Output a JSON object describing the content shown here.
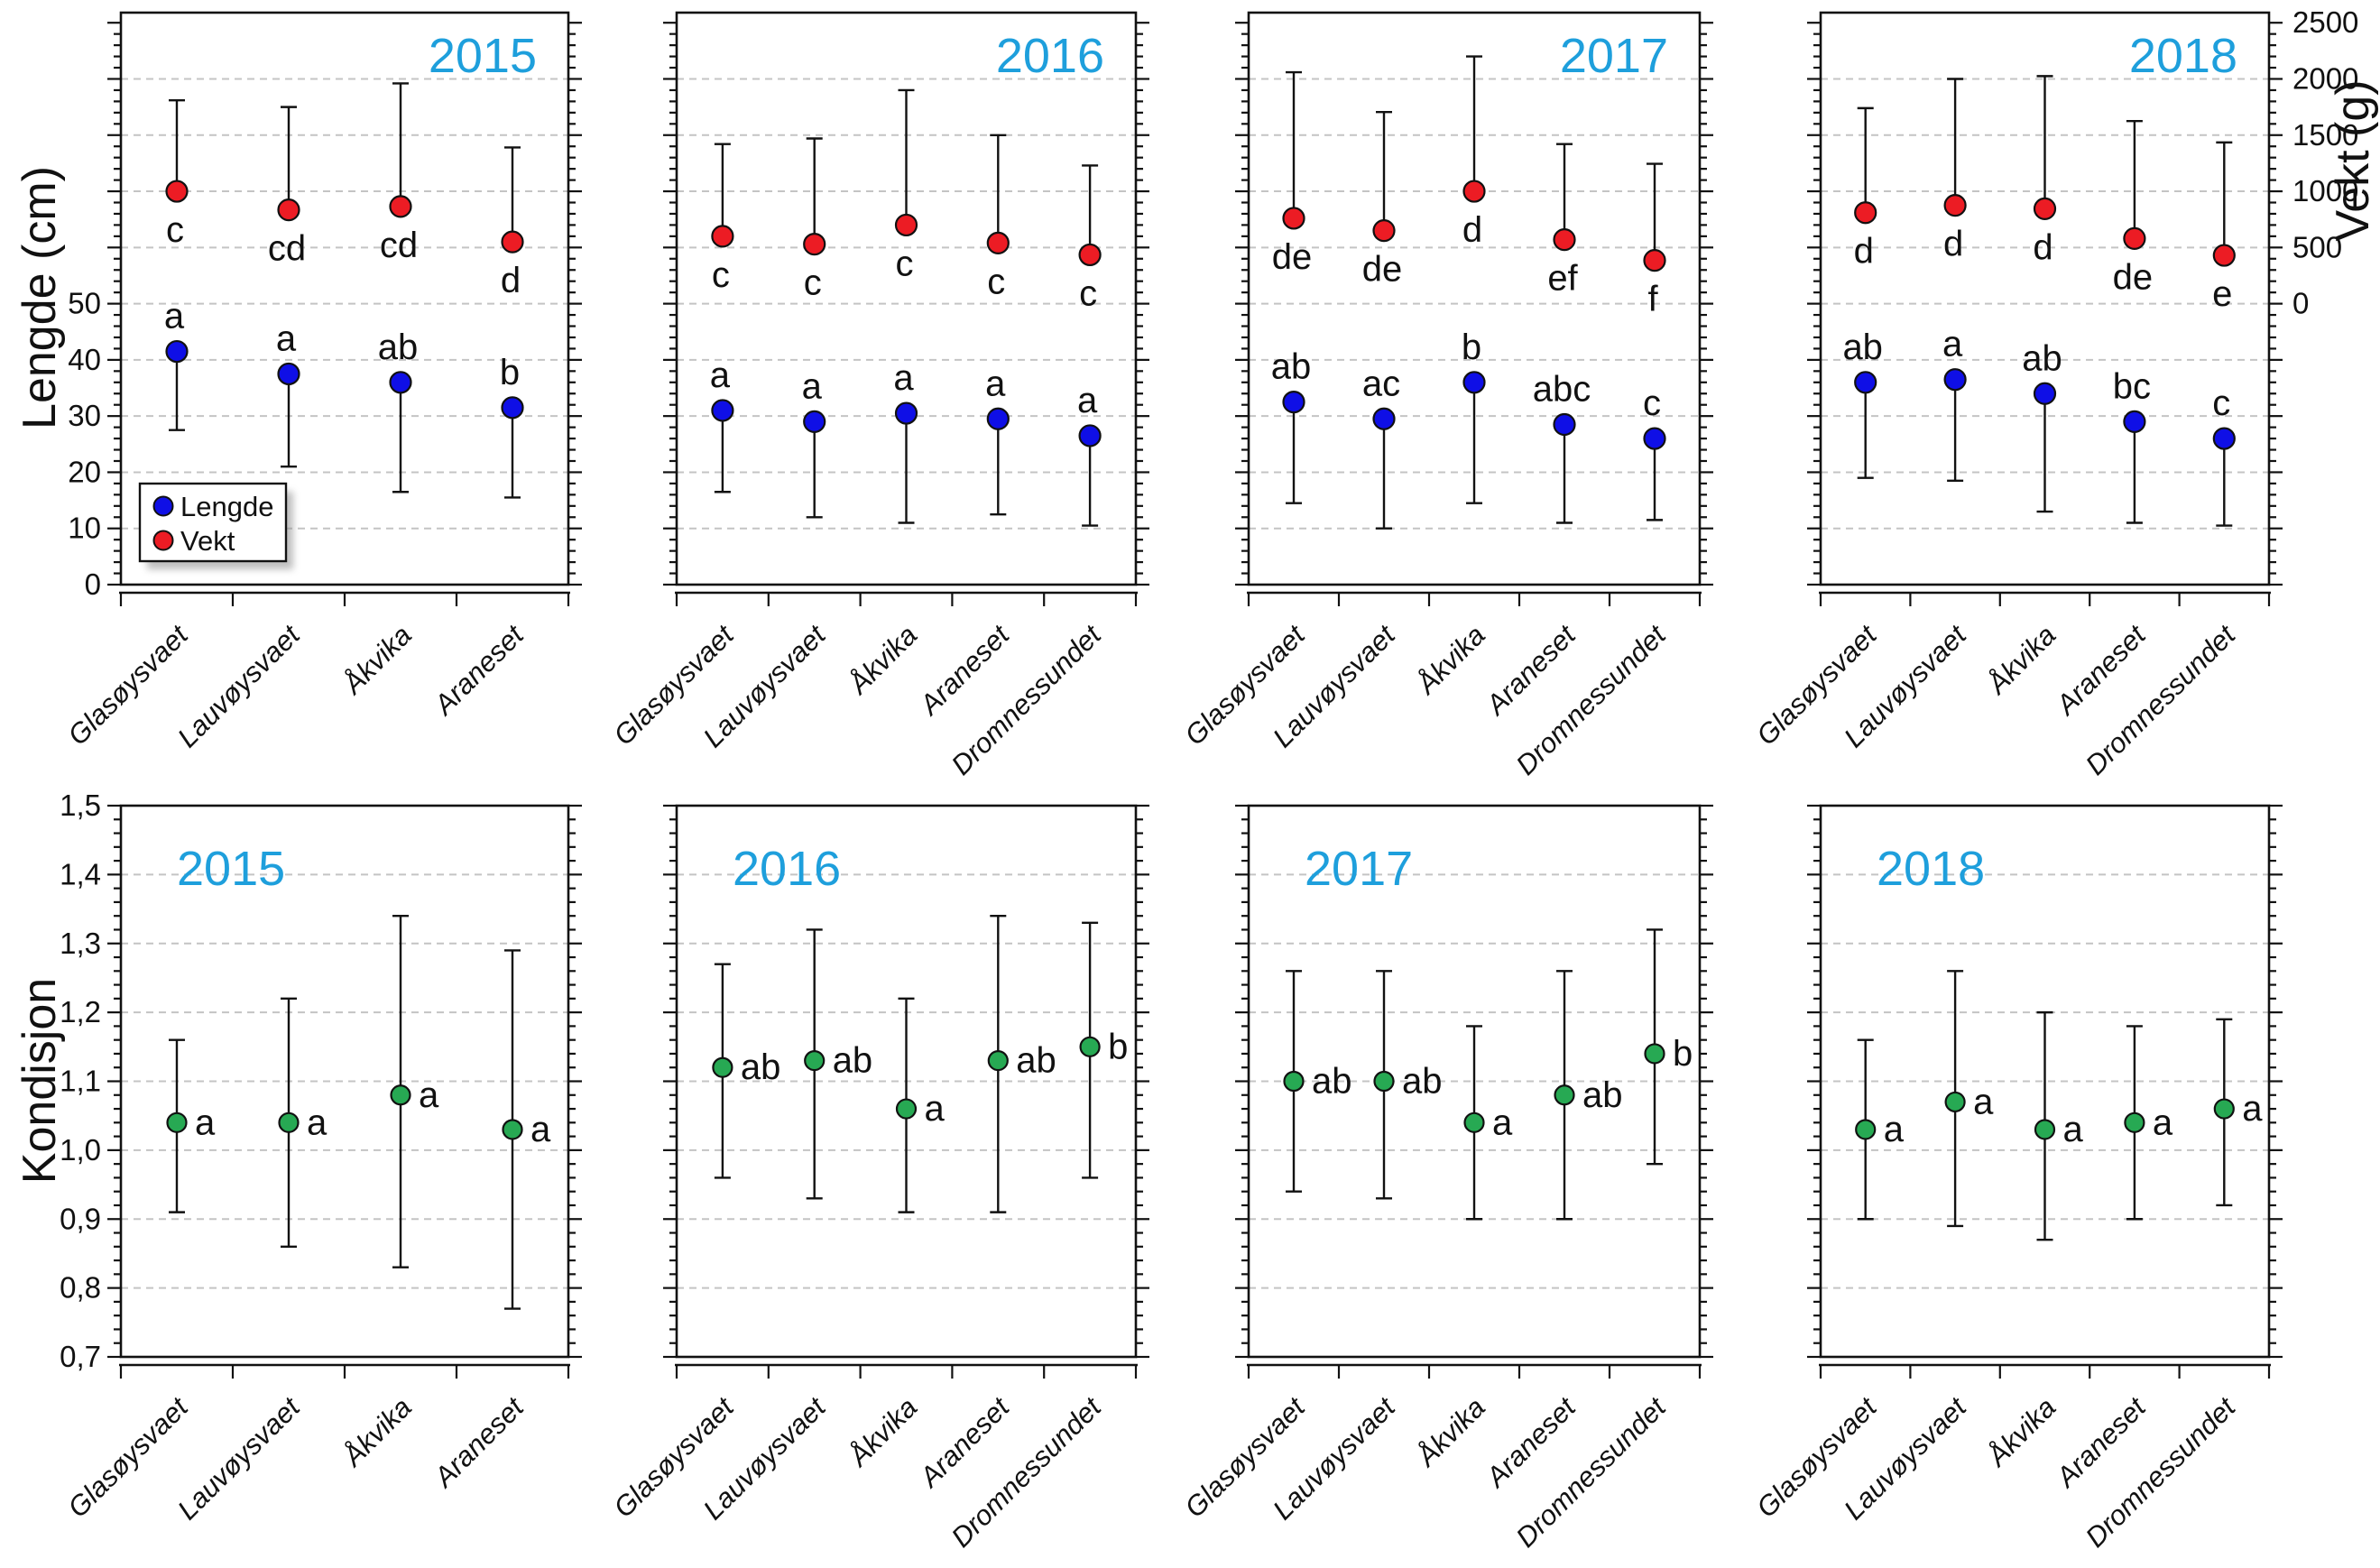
{
  "figure": {
    "axes": {
      "top_left_title": "Lengde (cm)",
      "top_right_title": "Vekt (g)",
      "bottom_left_title": "Kondisjon"
    },
    "colors": {
      "lengde_point": "#0F0FE6",
      "vekt_point": "#EC1C24",
      "kondisjon_point": "#27A953",
      "year_label": "#1E9FDC",
      "gridline": "#C4C4C4",
      "axis": "#111111"
    },
    "legend": {
      "items": [
        {
          "label": "Lengde",
          "color": "#0F0FE6"
        },
        {
          "label": "Vekt",
          "color": "#EC1C24"
        }
      ]
    }
  },
  "chart_data": [
    {
      "id": "lengde-vekt-2015",
      "type": "scatter",
      "row": "top",
      "year": "2015",
      "categories": [
        "Glasøysvaet",
        "Lauvøysvaet",
        "Åkvika",
        "Araneset"
      ],
      "y_left": {
        "label": "Lengde (cm)",
        "lim": [
          0,
          101.8
        ],
        "ticks": [
          0,
          10,
          20,
          30,
          40,
          50
        ],
        "grid": "10 cm steps, dashed"
      },
      "y_right": {
        "label": "Vekt (g)",
        "ticks": [
          0,
          500,
          1000,
          1500,
          2000,
          2500
        ],
        "note": "0 g aligns with 50 cm; 500 g per 10 cm"
      },
      "has_legend": true,
      "series": [
        {
          "name": "Lengde",
          "axis": "left",
          "color": "#0F0FE6",
          "values": [
            41.5,
            37.5,
            36,
            31.5
          ],
          "err_low": [
            27.5,
            21,
            16.5,
            15.5
          ],
          "letters": [
            "a",
            "a",
            "ab",
            "b"
          ]
        },
        {
          "name": "Vekt",
          "axis": "right",
          "color": "#EC1C24",
          "values": [
            1000,
            835,
            865,
            550
          ],
          "err_high": [
            1810,
            1750,
            1960,
            1390
          ],
          "letters": [
            "c",
            "cd",
            "cd",
            "d"
          ]
        }
      ]
    },
    {
      "id": "lengde-vekt-2016",
      "type": "scatter",
      "row": "top",
      "year": "2016",
      "categories": [
        "Glasøysvaet",
        "Lauvøysvaet",
        "Åkvika",
        "Araneset",
        "Dromnessundet"
      ],
      "y_left": {
        "label": "Lengde (cm)",
        "lim": [
          0,
          101.8
        ],
        "ticks": [
          0,
          10,
          20,
          30,
          40,
          50
        ]
      },
      "y_right": {
        "label": "Vekt (g)",
        "ticks": [
          0,
          500,
          1000,
          1500,
          2000,
          2500
        ]
      },
      "has_legend": false,
      "series": [
        {
          "name": "Lengde",
          "axis": "left",
          "color": "#0F0FE6",
          "values": [
            31,
            29,
            30.5,
            29.5,
            26.5
          ],
          "err_low": [
            16.5,
            12,
            11,
            12.5,
            10.5
          ],
          "letters": [
            "a",
            "a",
            "a",
            "a",
            "a"
          ]
        },
        {
          "name": "Vekt",
          "axis": "right",
          "color": "#EC1C24",
          "values": [
            600,
            530,
            700,
            540,
            435
          ],
          "err_high": [
            1420,
            1470,
            1900,
            1500,
            1230
          ],
          "letters": [
            "c",
            "c",
            "c",
            "c",
            "c"
          ]
        }
      ]
    },
    {
      "id": "lengde-vekt-2017",
      "type": "scatter",
      "row": "top",
      "year": "2017",
      "categories": [
        "Glasøysvaet",
        "Lauvøysvaet",
        "Åkvika",
        "Araneset",
        "Dromnessundet"
      ],
      "y_left": {
        "label": "Lengde (cm)",
        "lim": [
          0,
          101.8
        ],
        "ticks": [
          0,
          10,
          20,
          30,
          40,
          50
        ]
      },
      "y_right": {
        "label": "Vekt (g)",
        "ticks": [
          0,
          500,
          1000,
          1500,
          2000,
          2500
        ]
      },
      "has_legend": false,
      "series": [
        {
          "name": "Lengde",
          "axis": "left",
          "color": "#0F0FE6",
          "values": [
            32.5,
            29.5,
            36,
            28.5,
            26
          ],
          "err_low": [
            14.5,
            10,
            14.5,
            11,
            11.5
          ],
          "letters": [
            "ab",
            "ac",
            "b",
            "abc",
            "c"
          ]
        },
        {
          "name": "Vekt",
          "axis": "right",
          "color": "#EC1C24",
          "values": [
            760,
            650,
            1000,
            570,
            385
          ],
          "err_high": [
            2060,
            1705,
            2200,
            1420,
            1245
          ],
          "letters": [
            "de",
            "de",
            "d",
            "ef",
            "f"
          ]
        }
      ]
    },
    {
      "id": "lengde-vekt-2018",
      "type": "scatter",
      "row": "top",
      "year": "2018",
      "categories": [
        "Glasøysvaet",
        "Lauvøysvaet",
        "Åkvika",
        "Araneset",
        "Dromnessundet"
      ],
      "y_left": {
        "label": "Lengde (cm)",
        "lim": [
          0,
          101.8
        ],
        "ticks": [
          0,
          10,
          20,
          30,
          40,
          50
        ]
      },
      "y_right": {
        "label": "Vekt (g)",
        "ticks": [
          0,
          500,
          1000,
          1500,
          2000,
          2500
        ]
      },
      "has_legend": false,
      "series": [
        {
          "name": "Lengde",
          "axis": "left",
          "color": "#0F0FE6",
          "values": [
            36,
            36.5,
            34,
            29,
            26
          ],
          "err_low": [
            19,
            18.5,
            13,
            11,
            10.5
          ],
          "letters": [
            "ab",
            "a",
            "ab",
            "bc",
            "c"
          ]
        },
        {
          "name": "Vekt",
          "axis": "right",
          "color": "#EC1C24",
          "values": [
            810,
            875,
            845,
            580,
            430
          ],
          "err_high": [
            1740,
            2000,
            2025,
            1625,
            1435
          ],
          "letters": [
            "d",
            "d",
            "d",
            "de",
            "e"
          ]
        }
      ]
    },
    {
      "id": "kondisjon-2015",
      "type": "scatter",
      "row": "bottom",
      "year": "2015",
      "categories": [
        "Glasøysvaet",
        "Lauvøysvaet",
        "Åkvika",
        "Araneset"
      ],
      "y": {
        "label": "Kondisjon",
        "lim": [
          0.7,
          1.5
        ],
        "ticks": [
          0.7,
          0.8,
          0.9,
          1.0,
          1.1,
          1.2,
          1.3,
          1.4,
          1.5
        ],
        "tick_format": "comma-decimal"
      },
      "series": [
        {
          "name": "Kondisjon",
          "color": "#27A953",
          "values": [
            1.04,
            1.04,
            1.08,
            1.03
          ],
          "err_low": [
            0.91,
            0.86,
            0.83,
            0.77
          ],
          "err_high": [
            1.16,
            1.22,
            1.34,
            1.29
          ],
          "letters": [
            "a",
            "a",
            "a",
            "a"
          ]
        }
      ]
    },
    {
      "id": "kondisjon-2016",
      "type": "scatter",
      "row": "bottom",
      "year": "2016",
      "categories": [
        "Glasøysvaet",
        "Lauvøysvaet",
        "Åkvika",
        "Araneset",
        "Dromnessundet"
      ],
      "y": {
        "label": "Kondisjon",
        "lim": [
          0.7,
          1.5
        ],
        "ticks": [
          0.7,
          0.8,
          0.9,
          1.0,
          1.1,
          1.2,
          1.3,
          1.4,
          1.5
        ],
        "tick_format": "comma-decimal"
      },
      "series": [
        {
          "name": "Kondisjon",
          "color": "#27A953",
          "values": [
            1.12,
            1.13,
            1.06,
            1.13,
            1.15
          ],
          "err_low": [
            0.96,
            0.93,
            0.91,
            0.91,
            0.96
          ],
          "err_high": [
            1.27,
            1.32,
            1.22,
            1.34,
            1.33
          ],
          "letters": [
            "ab",
            "ab",
            "a",
            "ab",
            "b"
          ]
        }
      ]
    },
    {
      "id": "kondisjon-2017",
      "type": "scatter",
      "row": "bottom",
      "year": "2017",
      "categories": [
        "Glasøysvaet",
        "Lauvøysvaet",
        "Åkvika",
        "Araneset",
        "Dromnessundet"
      ],
      "y": {
        "label": "Kondisjon",
        "lim": [
          0.7,
          1.5
        ],
        "ticks": [
          0.7,
          0.8,
          0.9,
          1.0,
          1.1,
          1.2,
          1.3,
          1.4,
          1.5
        ],
        "tick_format": "comma-decimal"
      },
      "series": [
        {
          "name": "Kondisjon",
          "color": "#27A953",
          "values": [
            1.1,
            1.1,
            1.04,
            1.08,
            1.14
          ],
          "err_low": [
            0.94,
            0.93,
            0.9,
            0.9,
            0.98
          ],
          "err_high": [
            1.26,
            1.26,
            1.18,
            1.26,
            1.32
          ],
          "letters": [
            "ab",
            "ab",
            "a",
            "ab",
            "b"
          ]
        }
      ]
    },
    {
      "id": "kondisjon-2018",
      "type": "scatter",
      "row": "bottom",
      "year": "2018",
      "categories": [
        "Glasøysvaet",
        "Lauvøysvaet",
        "Åkvika",
        "Araneset",
        "Dromnessundet"
      ],
      "y": {
        "label": "Kondisjon",
        "lim": [
          0.7,
          1.5
        ],
        "ticks": [
          0.7,
          0.8,
          0.9,
          1.0,
          1.1,
          1.2,
          1.3,
          1.4,
          1.5
        ],
        "tick_format": "comma-decimal"
      },
      "series": [
        {
          "name": "Kondisjon",
          "color": "#27A953",
          "values": [
            1.03,
            1.07,
            1.03,
            1.04,
            1.06
          ],
          "err_low": [
            0.9,
            0.89,
            0.87,
            0.9,
            0.92
          ],
          "err_high": [
            1.16,
            1.26,
            1.2,
            1.18,
            1.19
          ],
          "letters": [
            "a",
            "a",
            "a",
            "a",
            "a"
          ]
        }
      ]
    }
  ]
}
